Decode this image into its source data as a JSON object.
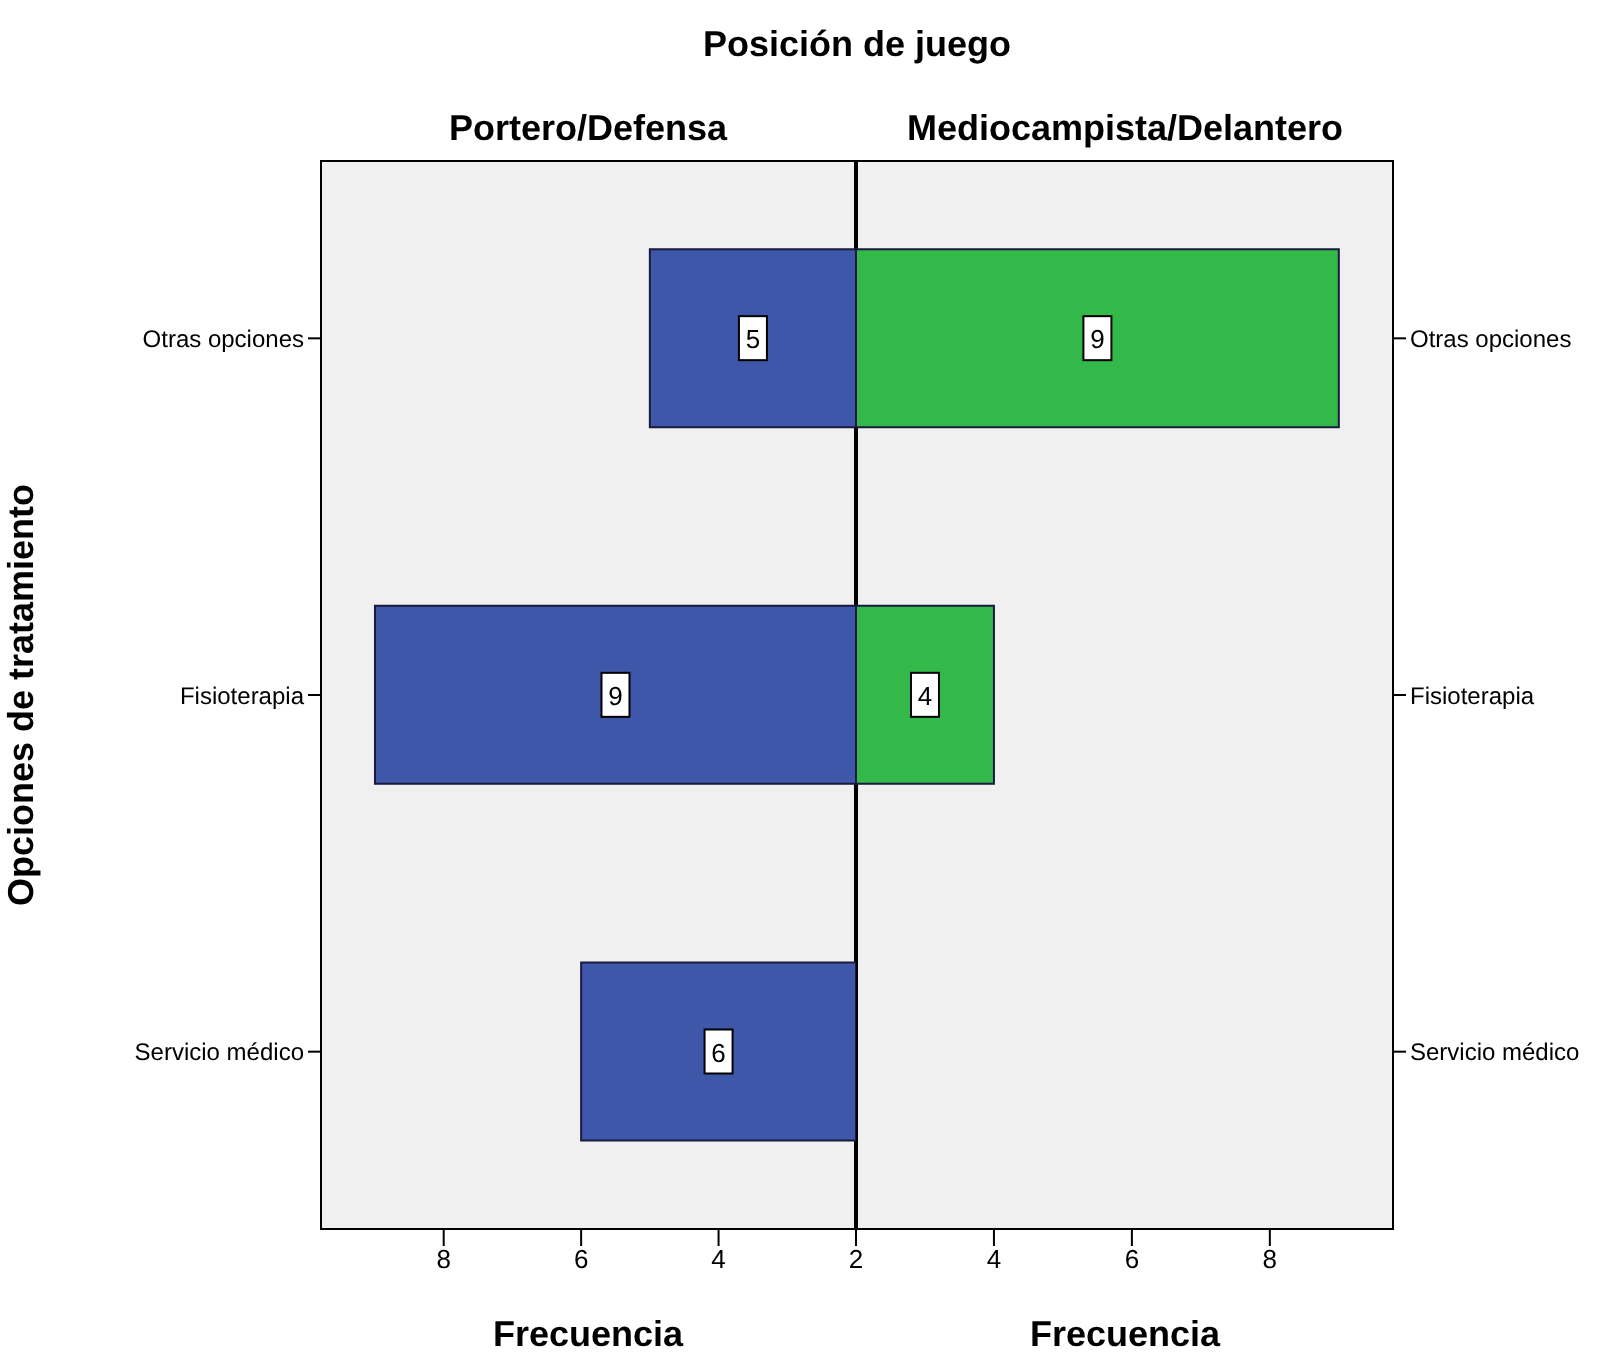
{
  "chart_data": [
    {
      "type": "bar",
      "orientation": "horizontal",
      "title": "Posición de juego",
      "subtitle": "Portero/Defensa",
      "xlabel": "Frecuencia",
      "ylabel": "Opciones de tratamiento",
      "categories": [
        "Otras opciones",
        "Fisioterapia",
        "Servicio médico"
      ],
      "values": [
        5,
        9,
        6
      ],
      "color": "#3e57a9",
      "xlim": [
        9.8,
        2
      ],
      "xticks": [
        8,
        6,
        4,
        2
      ],
      "data_labels": true,
      "grid": false,
      "legend": false
    },
    {
      "type": "bar",
      "orientation": "horizontal",
      "subtitle": "Mediocampista/Delantero",
      "xlabel": "Frecuencia",
      "categories": [
        "Otras opciones",
        "Fisioterapia",
        "Servicio médico"
      ],
      "values": [
        9,
        4,
        null
      ],
      "color": "#32b94a",
      "xlim": [
        2,
        9.8
      ],
      "xticks": [
        4,
        6,
        8
      ],
      "data_labels": true,
      "grid": false,
      "legend": false
    }
  ]
}
